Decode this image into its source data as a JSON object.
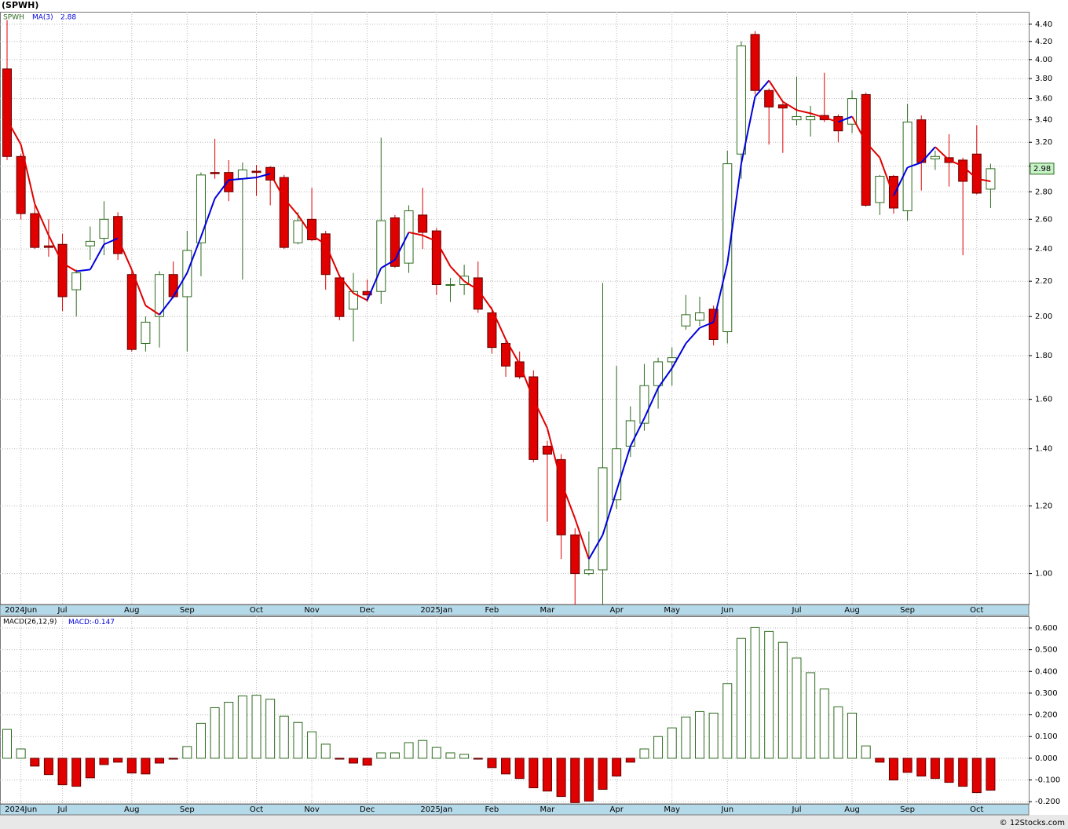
{
  "chart_data": [
    {
      "type": "candlestick",
      "title": "(SPWH)",
      "log_scale": true,
      "grid": true,
      "up_color": "#2e6b1f",
      "down_color": "#e00000",
      "categories": [
        null,
        "2024Jun",
        null,
        null,
        "Jul",
        null,
        null,
        null,
        null,
        "Aug",
        null,
        null,
        null,
        "Sep",
        null,
        null,
        null,
        null,
        "Oct",
        null,
        null,
        null,
        "Nov",
        null,
        null,
        null,
        "Dec",
        null,
        null,
        null,
        null,
        "2025Jan",
        null,
        null,
        null,
        "Feb",
        null,
        null,
        null,
        "Mar",
        null,
        null,
        null,
        null,
        "Apr",
        null,
        null,
        null,
        "May",
        null,
        null,
        null,
        "Jun",
        null,
        null,
        null,
        null,
        "Jul",
        null,
        null,
        null,
        "Aug",
        null,
        null,
        null,
        "Sep",
        null,
        null,
        null,
        null,
        "Oct",
        null
      ],
      "series": [
        {
          "name": "SPWH",
          "color": "#2e6b1f",
          "open": [
            3.9,
            3.08,
            2.64,
            2.42,
            2.43,
            2.15,
            2.42,
            2.47,
            2.62,
            2.24,
            1.86,
            2.0,
            2.24,
            2.11,
            2.44,
            2.95,
            2.95,
            2.9,
            2.96,
            2.99,
            2.91,
            2.44,
            2.6,
            2.5,
            2.22,
            2.04,
            2.14,
            2.14,
            2.61,
            2.31,
            2.63,
            2.52,
            2.18,
            2.18,
            2.22,
            2.02,
            1.86,
            1.77,
            1.7,
            1.41,
            1.36,
            1.11,
            1.0,
            1.01,
            1.22,
            1.41,
            1.5,
            1.66,
            1.77,
            1.95,
            1.98,
            2.04,
            1.92,
            3.1,
            4.28,
            3.68,
            3.54,
            3.4,
            3.4,
            3.44,
            3.43,
            3.36,
            3.64,
            2.72,
            2.92,
            2.66,
            3.4,
            3.06,
            3.07,
            3.05,
            3.1,
            2.82
          ],
          "high": [
            4.45,
            3.1,
            2.7,
            2.6,
            2.5,
            2.27,
            2.55,
            2.73,
            2.65,
            2.26,
            2.0,
            2.26,
            2.32,
            2.52,
            2.95,
            3.23,
            3.05,
            3.03,
            3.01,
            3.0,
            2.93,
            2.65,
            2.83,
            2.52,
            2.24,
            2.25,
            2.21,
            3.24,
            2.63,
            2.7,
            2.83,
            2.54,
            2.22,
            2.3,
            2.32,
            2.05,
            1.88,
            1.82,
            1.73,
            1.43,
            1.38,
            1.13,
            1.12,
            2.19,
            1.75,
            1.57,
            1.76,
            1.79,
            1.84,
            2.12,
            2.11,
            2.06,
            3.13,
            4.2,
            4.32,
            3.7,
            3.58,
            3.82,
            3.53,
            3.86,
            3.45,
            3.68,
            3.66,
            2.93,
            2.93,
            3.55,
            3.44,
            3.13,
            3.27,
            3.07,
            3.35,
            3.02
          ],
          "low": [
            3.05,
            2.6,
            2.4,
            2.35,
            2.03,
            2.0,
            2.33,
            2.36,
            2.33,
            1.82,
            1.82,
            1.84,
            2.1,
            1.82,
            2.23,
            2.9,
            2.73,
            2.21,
            2.77,
            2.7,
            2.4,
            2.43,
            2.45,
            2.15,
            1.98,
            1.87,
            2.08,
            2.07,
            2.28,
            2.25,
            2.4,
            2.12,
            2.08,
            2.12,
            2.02,
            1.81,
            1.7,
            1.69,
            1.35,
            1.15,
            1.04,
            0.92,
            0.995,
            0.92,
            1.19,
            1.37,
            1.47,
            1.56,
            1.66,
            1.93,
            1.95,
            1.85,
            1.86,
            2.9,
            3.64,
            3.18,
            3.11,
            3.35,
            3.25,
            3.38,
            3.2,
            3.28,
            2.69,
            2.63,
            2.64,
            2.59,
            2.81,
            2.97,
            2.84,
            2.36,
            2.78,
            2.68
          ],
          "close": [
            3.08,
            2.64,
            2.41,
            2.41,
            2.11,
            2.25,
            2.45,
            2.6,
            2.37,
            1.83,
            1.97,
            2.24,
            2.11,
            2.39,
            2.93,
            2.94,
            2.8,
            2.97,
            2.95,
            2.89,
            2.41,
            2.59,
            2.46,
            2.24,
            2.0,
            2.14,
            2.12,
            2.59,
            2.29,
            2.66,
            2.51,
            2.18,
            2.18,
            2.23,
            2.04,
            1.84,
            1.75,
            1.7,
            1.36,
            1.38,
            1.11,
            1.0,
            1.01,
            1.33,
            1.4,
            1.51,
            1.66,
            1.77,
            1.79,
            2.01,
            2.02,
            1.88,
            3.02,
            4.15,
            3.68,
            3.52,
            3.51,
            3.43,
            3.43,
            3.4,
            3.3,
            3.6,
            2.7,
            2.92,
            2.68,
            3.38,
            3.03,
            3.08,
            3.03,
            2.88,
            2.79,
            2.98
          ]
        },
        {
          "name": "MA(3)",
          "color": "#0000dd",
          "down_color": "#e00000",
          "values": [
            3.4,
            3.18,
            2.71,
            2.49,
            2.31,
            2.26,
            2.27,
            2.43,
            2.47,
            2.27,
            2.06,
            2.01,
            2.11,
            2.25,
            2.48,
            2.75,
            2.89,
            2.9,
            2.91,
            2.94,
            2.75,
            2.63,
            2.49,
            2.43,
            2.23,
            2.13,
            2.09,
            2.28,
            2.33,
            2.51,
            2.49,
            2.45,
            2.29,
            2.2,
            2.15,
            2.04,
            1.88,
            1.76,
            1.6,
            1.48,
            1.28,
            1.16,
            1.04,
            1.11,
            1.25,
            1.41,
            1.52,
            1.65,
            1.74,
            1.86,
            1.94,
            1.97,
            2.31,
            3.02,
            3.62,
            3.78,
            3.57,
            3.49,
            3.46,
            3.42,
            3.38,
            3.43,
            3.2,
            3.07,
            2.77,
            2.99,
            3.03,
            3.16,
            3.05,
            3.0,
            2.9,
            2.88
          ]
        }
      ],
      "ylim": [
        0.92,
        4.55
      ],
      "yticks": [
        {
          "value": 1.0,
          "label": "1.00"
        },
        {
          "value": 1.2,
          "label": "1.20"
        },
        {
          "value": 1.4,
          "label": "1.40"
        },
        {
          "value": 1.6,
          "label": "1.60"
        },
        {
          "value": 1.8,
          "label": "1.80"
        },
        {
          "value": 2.0,
          "label": "2.00"
        },
        {
          "value": 2.2,
          "label": "2.20"
        },
        {
          "value": 2.4,
          "label": "2.40"
        },
        {
          "value": 2.6,
          "label": "2.60"
        },
        {
          "value": 2.8,
          "label": "2.80"
        },
        {
          "value": 3.0,
          "label": "3.00"
        },
        {
          "value": 3.2,
          "label": "3.20"
        },
        {
          "value": 3.4,
          "label": "3.40"
        },
        {
          "value": 3.6,
          "label": "3.60"
        },
        {
          "value": 3.8,
          "label": "3.80"
        },
        {
          "value": 4.0,
          "label": "4.00"
        },
        {
          "value": 4.2,
          "label": "4.20"
        },
        {
          "value": 4.4,
          "label": "4.40"
        }
      ]
    },
    {
      "type": "bar",
      "title": "MACD(26,12,9)",
      "value_name": "MACD:",
      "grid": true,
      "up_color": "#2e6b1f",
      "down_color": "#e00000",
      "credit": "© 12Stocks.com",
      "categories": [
        null,
        "2024Jun",
        null,
        null,
        "Jul",
        null,
        null,
        null,
        null,
        "Aug",
        null,
        null,
        null,
        "Sep",
        null,
        null,
        null,
        null,
        "Oct",
        null,
        null,
        null,
        "Nov",
        null,
        null,
        null,
        "Dec",
        null,
        null,
        null,
        null,
        "2025Jan",
        null,
        null,
        null,
        "Feb",
        null,
        null,
        null,
        "Mar",
        null,
        null,
        null,
        null,
        "Apr",
        null,
        null,
        null,
        "May",
        null,
        null,
        null,
        "Jun",
        null,
        null,
        null,
        null,
        "Jul",
        null,
        null,
        null,
        "Aug",
        null,
        null,
        null,
        "Sep",
        null,
        null,
        null,
        null,
        "Oct",
        null
      ],
      "values": [
        0.133,
        0.043,
        -0.036,
        -0.075,
        -0.122,
        -0.129,
        -0.09,
        -0.029,
        -0.018,
        -0.068,
        -0.072,
        -0.022,
        -0.004,
        0.054,
        0.161,
        0.233,
        0.258,
        0.287,
        0.29,
        0.272,
        0.194,
        0.165,
        0.122,
        0.065,
        -0.004,
        -0.022,
        -0.032,
        0.025,
        0.025,
        0.072,
        0.082,
        0.05,
        0.025,
        0.018,
        -0.004,
        -0.043,
        -0.072,
        -0.093,
        -0.136,
        -0.151,
        -0.176,
        -0.204,
        -0.197,
        -0.143,
        -0.082,
        -0.018,
        0.043,
        0.1,
        0.14,
        0.19,
        0.215,
        0.208,
        0.344,
        0.552,
        0.602,
        0.584,
        0.534,
        0.462,
        0.394,
        0.319,
        0.237,
        0.208,
        0.057,
        -0.018,
        -0.1,
        -0.065,
        -0.082,
        -0.093,
        -0.111,
        -0.129,
        -0.158,
        -0.147
      ],
      "ylim": [
        -0.21,
        0.654
      ],
      "yticks": [
        {
          "value": -0.2,
          "label": "-0.200"
        },
        {
          "value": -0.1,
          "label": "-0.100"
        },
        {
          "value": 0,
          "label": "0.000"
        },
        {
          "value": 0.1,
          "label": "0.100"
        },
        {
          "value": 0.2,
          "label": "0.200"
        },
        {
          "value": 0.3,
          "label": "0.300"
        },
        {
          "value": 0.4,
          "label": "0.400"
        },
        {
          "value": 0.5,
          "label": "0.500"
        },
        {
          "value": 0.6,
          "label": "0.600"
        }
      ]
    }
  ]
}
